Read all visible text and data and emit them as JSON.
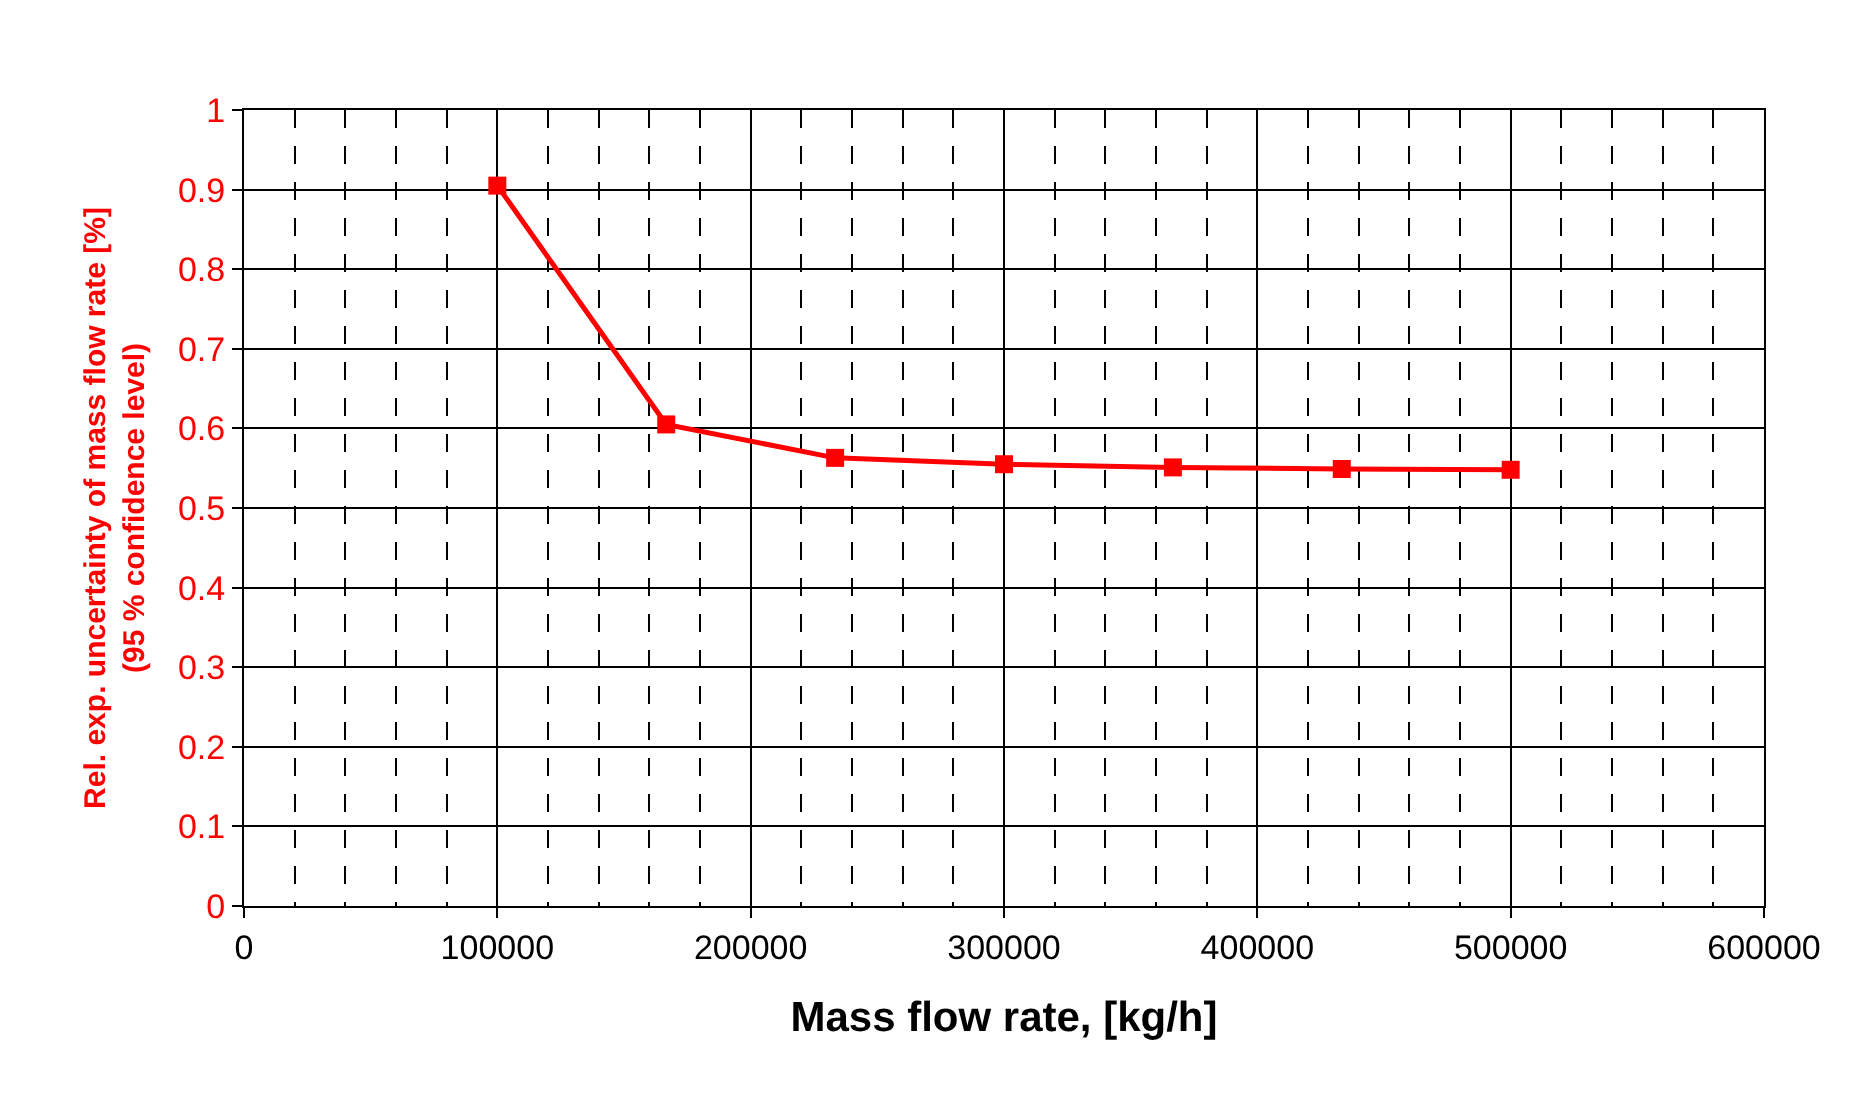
{
  "chart_data": {
    "type": "line",
    "xlabel": "Mass flow rate, [kg/h]",
    "ylabel": "Rel. exp. uncertainty of mass flow rate [%] (95 % confidence level)",
    "x": [
      100000,
      166667,
      233333,
      300000,
      366667,
      433333,
      500000
    ],
    "series": [
      {
        "color": "#ff0000",
        "values": [
          0.905,
          0.605,
          0.563,
          0.555,
          0.551,
          0.549,
          0.548
        ]
      }
    ],
    "xlim": [
      0,
      600000
    ],
    "xticks": [
      0,
      100000,
      200000,
      300000,
      400000,
      500000,
      600000
    ],
    "ylim": [
      0,
      1
    ],
    "yticks": [
      0,
      0.1,
      0.2,
      0.3,
      0.4,
      0.5,
      0.6,
      0.7,
      0.8,
      0.9,
      1
    ],
    "grid": true,
    "marker": "square",
    "line_style": "solid"
  }
}
